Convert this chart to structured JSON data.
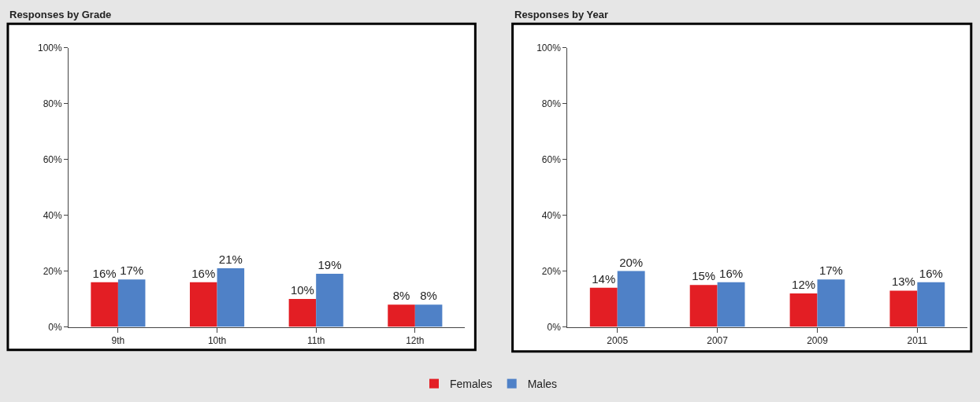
{
  "chart_data": [
    {
      "type": "bar",
      "title": "Responses by Grade",
      "categories": [
        "9th",
        "10th",
        "11th",
        "12th"
      ],
      "series": [
        {
          "name": "Females",
          "color": "#e31e24",
          "values": [
            16,
            16,
            10,
            8
          ],
          "value_labels": [
            "16%",
            "16%",
            "10%",
            "8%"
          ]
        },
        {
          "name": "Males",
          "color": "#4f81c7",
          "values": [
            17,
            21,
            19,
            8
          ],
          "value_labels": [
            "17%",
            "21%",
            "19%",
            "8%"
          ]
        }
      ],
      "ylim": [
        0,
        100
      ],
      "yticks": [
        {
          "value": 0,
          "label": "0%"
        },
        {
          "value": 20,
          "label": "20%"
        },
        {
          "value": 40,
          "label": "40%"
        },
        {
          "value": 60,
          "label": "60%"
        },
        {
          "value": 80,
          "label": "80%"
        },
        {
          "value": 100,
          "label": "100%"
        }
      ],
      "legend": "bottom"
    },
    {
      "type": "bar",
      "title": "Responses by Year",
      "categories": [
        "2005",
        "2007",
        "2009",
        "2011"
      ],
      "series": [
        {
          "color": "#e31e24",
          "values": [
            14,
            15,
            12,
            13
          ],
          "value_labels": [
            "14%",
            "15%",
            "12%",
            "13%"
          ]
        },
        {
          "color": "#4f81c7",
          "values": [
            20,
            16,
            17,
            16
          ],
          "value_labels": [
            "20%",
            "16%",
            "17%",
            "16%"
          ]
        }
      ],
      "ylim": [
        0,
        100
      ],
      "yticks": [
        {
          "value": 0,
          "label": "0%"
        },
        {
          "value": 20,
          "label": "20%"
        },
        {
          "value": 40,
          "label": "40%"
        },
        {
          "value": 60,
          "label": "60%"
        },
        {
          "value": 80,
          "label": "80%"
        },
        {
          "value": 100,
          "label": "100%"
        }
      ]
    }
  ]
}
